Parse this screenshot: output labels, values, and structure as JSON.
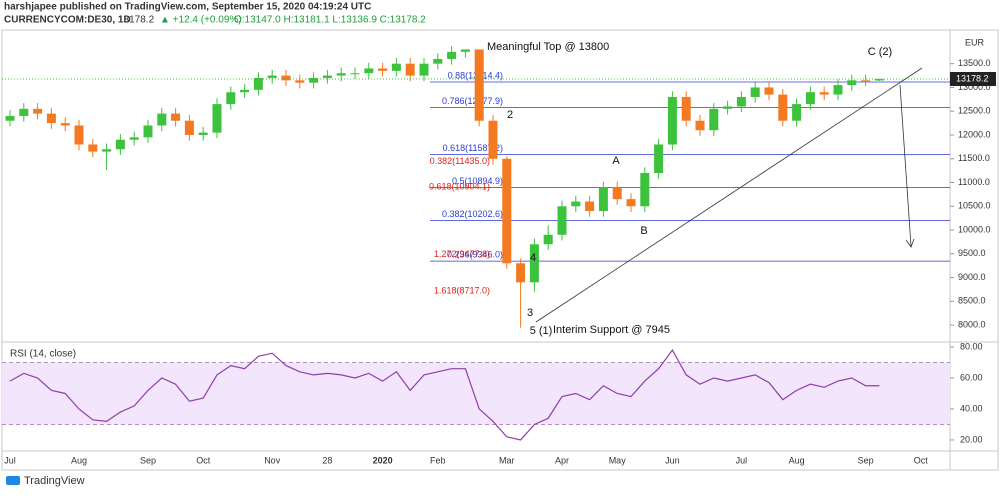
{
  "header": {
    "publisher": "harshjapee published on TradingView.com, September 15, 2020 04:19:24 UTC",
    "symbol": "CURRENCYCOM:DE30, 1D",
    "last": 13178.2,
    "change": "▲ +12.4 (+0.09%)",
    "ohlc": "O:13147.0 H:13181.1 L:13136.9 C:13178.2"
  },
  "brand": "TradingView",
  "chart_data": {
    "type": "candlestick",
    "currency": "EUR",
    "categories": [
      "Jul",
      null,
      null,
      null,
      null,
      "Aug",
      null,
      null,
      null,
      null,
      "Sep",
      null,
      null,
      null,
      "Oct",
      null,
      null,
      null,
      null,
      "Nov",
      null,
      null,
      null,
      "28",
      null,
      null,
      null,
      "2020",
      null,
      null,
      null,
      "Feb",
      null,
      null,
      null,
      null,
      "Mar",
      null,
      null,
      null,
      "Apr",
      null,
      null,
      null,
      "May",
      null,
      null,
      null,
      "Jun",
      null,
      null,
      null,
      null,
      "Jul",
      null,
      null,
      null,
      "Aug",
      null,
      null,
      null,
      null,
      "Sep",
      null,
      null,
      null,
      "Oct"
    ],
    "open": [
      12300,
      12400,
      12550,
      12450,
      12250,
      12200,
      11800,
      11650,
      11700,
      11900,
      11950,
      12200,
      12450,
      12300,
      12000,
      12050,
      12650,
      12900,
      12950,
      13200,
      13250,
      13150,
      13100,
      13200,
      13250,
      13300,
      13300,
      13400,
      13350,
      13500,
      13250,
      13500,
      13600,
      13750,
      13800,
      12300,
      11500,
      9300,
      8900,
      9700,
      9900,
      10500,
      10600,
      10400,
      10900,
      10650,
      10500,
      11200,
      11800,
      12800,
      12300,
      12100,
      12550,
      12600,
      12800,
      13000,
      12850,
      12300,
      12650,
      12900,
      12850,
      13050,
      13150,
      13147,
      null,
      null,
      null
    ],
    "high": [
      12520,
      12670,
      12670,
      12570,
      12370,
      12320,
      11920,
      11820,
      12020,
      12070,
      12320,
      12570,
      12570,
      12420,
      12170,
      12770,
      13020,
      13070,
      13320,
      13370,
      13370,
      13270,
      13320,
      13370,
      13420,
      13420,
      13520,
      13520,
      13620,
      13620,
      13620,
      13720,
      13870,
      13800,
      13800,
      12420,
      11550,
      9400,
      9820,
      10100,
      10620,
      10720,
      10720,
      11020,
      11020,
      10770,
      11320,
      11920,
      12920,
      12920,
      12420,
      12670,
      12720,
      12920,
      13120,
      13120,
      12970,
      12770,
      13020,
      13020,
      13170,
      13270,
      13270,
      13181.1,
      null,
      null,
      null
    ],
    "low": [
      12180,
      12280,
      12330,
      12130,
      12080,
      11680,
      11530,
      11260,
      11580,
      11780,
      11830,
      12080,
      12180,
      11880,
      11880,
      11930,
      12530,
      12780,
      12830,
      13080,
      13030,
      12980,
      12980,
      13080,
      13130,
      13180,
      13180,
      13230,
      13230,
      13130,
      13130,
      13380,
      13480,
      13630,
      12180,
      11380,
      9180,
      7945,
      8700,
      9580,
      9780,
      10380,
      10280,
      10280,
      10530,
      10380,
      10380,
      11080,
      11680,
      12180,
      11980,
      11980,
      12430,
      12480,
      12680,
      12730,
      12180,
      12180,
      12530,
      12730,
      12730,
      12930,
      13030,
      13136.9,
      null,
      null,
      null
    ],
    "close": [
      12400,
      12550,
      12450,
      12250,
      12200,
      11800,
      11650,
      11700,
      11900,
      11950,
      12200,
      12450,
      12300,
      12000,
      12050,
      12650,
      12900,
      12950,
      13200,
      13250,
      13150,
      13100,
      13200,
      13250,
      13300,
      13300,
      13400,
      13350,
      13500,
      13250,
      13500,
      13600,
      13750,
      13800,
      12300,
      11500,
      9300,
      8900,
      9700,
      9900,
      10500,
      10600,
      10400,
      10900,
      10650,
      10500,
      11200,
      11800,
      12800,
      12300,
      12100,
      12550,
      12600,
      12800,
      13000,
      12850,
      12300,
      12650,
      12900,
      12850,
      13050,
      13150,
      13147,
      13178.2,
      null,
      null,
      null
    ],
    "up_color": "#3cc23c",
    "down_color": "#f37a21",
    "ylim": [
      7686,
      14167
    ],
    "yticks": [
      {
        "value": 8000,
        "label": "8000.0"
      },
      {
        "value": 8500,
        "label": "8500.0"
      },
      {
        "value": 9000,
        "label": "9000.0"
      },
      {
        "value": 9500,
        "label": "9500.0"
      },
      {
        "value": 10000,
        "label": "10000.0"
      },
      {
        "value": 10500,
        "label": "10500.0"
      },
      {
        "value": 11000,
        "label": "11000.0"
      },
      {
        "value": 11500,
        "label": "11500.0"
      },
      {
        "value": 12000,
        "label": "12000.0"
      },
      {
        "value": 12500,
        "label": "12500.0"
      },
      {
        "value": 13000,
        "label": "13000.0"
      },
      {
        "value": 13500,
        "label": "13500.0"
      }
    ],
    "fib_color": "#2a3bd6",
    "fib_levels": [
      {
        "value": 13114.4,
        "label": "0.88(13114.4)"
      },
      {
        "value": 12577.9,
        "label": "0.786(12577.9)"
      },
      {
        "value": 11587.2,
        "label": "0.618(11587.2)"
      },
      {
        "value": 10894.9,
        "label": "0.5(10894.9)"
      },
      {
        "value": 10202.6,
        "label": "0.382(10202.6)"
      },
      {
        "value": 9346.0,
        "label": "0.236(9346.0)"
      }
    ],
    "extension_color": "#e0201b",
    "extension_levels": [
      {
        "value": 11435.0,
        "label": "0.382(11435.0)"
      },
      {
        "value": 10904.1,
        "label": "0.618(10904.1)"
      },
      {
        "value": 9477.8,
        "label": "1.272(9477.8)"
      },
      {
        "value": 8717.0,
        "label": "1.618(8717.0)"
      }
    ],
    "annotations": [
      "Meaningful Top @ 13800",
      "2",
      "A",
      "B",
      "4",
      "3",
      "5 (1)",
      "Interim Support @ 7945",
      "C (2)"
    ],
    "rsi": {
      "label": "RSI (14, close)",
      "color": "#8e3fa8",
      "band": [
        30,
        70
      ],
      "values": [
        58,
        63,
        60,
        52,
        50,
        40,
        33,
        32,
        38,
        42,
        52,
        60,
        56,
        45,
        47,
        62,
        68,
        66,
        74,
        76,
        68,
        64,
        62,
        63,
        62,
        60,
        63,
        58,
        64,
        52,
        62,
        64,
        66,
        66,
        40,
        32,
        22,
        20,
        30,
        34,
        48,
        50,
        46,
        55,
        50,
        48,
        58,
        66,
        78,
        62,
        56,
        60,
        58,
        60,
        62,
        57,
        46,
        52,
        56,
        54,
        58,
        60,
        55,
        55,
        null,
        null,
        null
      ],
      "ylim": [
        13.5,
        82.6
      ],
      "yticks": [
        {
          "value": 20,
          "label": "20.00"
        },
        {
          "value": 40,
          "label": "40.00"
        },
        {
          "value": 60,
          "label": "60.00"
        },
        {
          "value": 80,
          "label": "80.00"
        }
      ]
    }
  }
}
